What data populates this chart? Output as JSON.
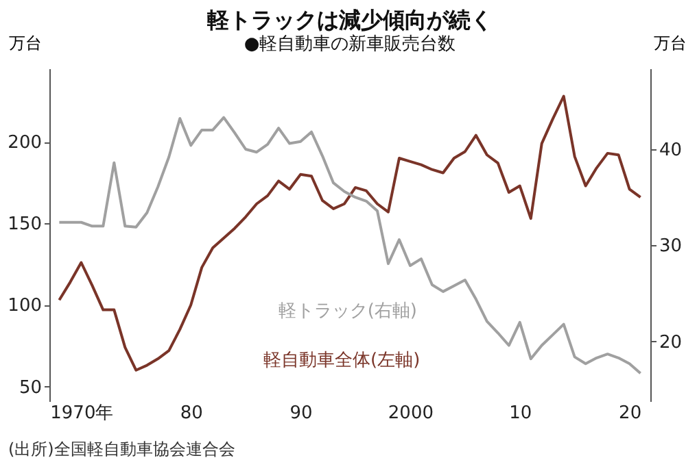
{
  "chart_data": {
    "type": "line",
    "title": "軽トラックは減少傾向が続く",
    "subtitle": "●軽自動車の新車販売台数",
    "ylabel": "万台",
    "y2label": "万台",
    "x": [
      1968,
      1969,
      1970,
      1971,
      1972,
      1973,
      1974,
      1975,
      1976,
      1977,
      1978,
      1979,
      1980,
      1981,
      1982,
      1983,
      1984,
      1985,
      1986,
      1987,
      1988,
      1989,
      1990,
      1991,
      1992,
      1993,
      1994,
      1995,
      1996,
      1997,
      1998,
      1999,
      2000,
      2001,
      2002,
      2003,
      2004,
      2005,
      2006,
      2007,
      2008,
      2009,
      2010,
      2011,
      2012,
      2013,
      2014,
      2015,
      2016,
      2017,
      2018,
      2019,
      2020,
      2021
    ],
    "xlim": [
      1967.1,
      2021.9
    ],
    "xticks": [
      {
        "value": 1970,
        "label": "1970年"
      },
      {
        "value": 1980,
        "label": "80"
      },
      {
        "value": 1990,
        "label": "90"
      },
      {
        "value": 2000,
        "label": "2000"
      },
      {
        "value": 2010,
        "label": "10"
      },
      {
        "value": 2020,
        "label": "20"
      }
    ],
    "ylim": [
      41,
      245
    ],
    "yticks": [
      50,
      100,
      150,
      200
    ],
    "y2lim": [
      13.8,
      48.4
    ],
    "y2ticks": [
      20,
      30,
      40
    ],
    "series": [
      {
        "name": "軽自動車全体(左軸)",
        "color": "#7a3428",
        "values": [
          103,
          114,
          126,
          112,
          97,
          97,
          74,
          60,
          63,
          67,
          72,
          85,
          100,
          123,
          135,
          141,
          147,
          154,
          162,
          167,
          176,
          171,
          180,
          179,
          164,
          159,
          162,
          172,
          170,
          162,
          157,
          190,
          188,
          186,
          183,
          181,
          190,
          194,
          204,
          192,
          187,
          169,
          173,
          153,
          199,
          214,
          228,
          191,
          173,
          184,
          193,
          192,
          171,
          166
        ]
      },
      {
        "name": "軽トラック(右軸)",
        "color": "#a0a0a0",
        "axis": "y2",
        "values": [
          32.4,
          32.4,
          32.4,
          32.0,
          32.0,
          38.6,
          32.0,
          31.9,
          33.4,
          36.1,
          39.2,
          43.2,
          40.4,
          42.0,
          42.0,
          43.3,
          41.7,
          40.0,
          39.7,
          40.5,
          42.2,
          40.6,
          40.8,
          41.8,
          39.3,
          36.5,
          35.6,
          35.0,
          34.6,
          33.6,
          28.1,
          30.6,
          27.9,
          28.6,
          25.9,
          25.2,
          25.8,
          26.4,
          24.4,
          22.1,
          20.9,
          19.6,
          22.0,
          18.2,
          19.6,
          20.7,
          21.8,
          18.4,
          17.7,
          18.3,
          18.7,
          18.3,
          17.7,
          16.7
        ]
      }
    ],
    "annotations": [
      "(出所)全国軽自動車協会連合会"
    ]
  }
}
